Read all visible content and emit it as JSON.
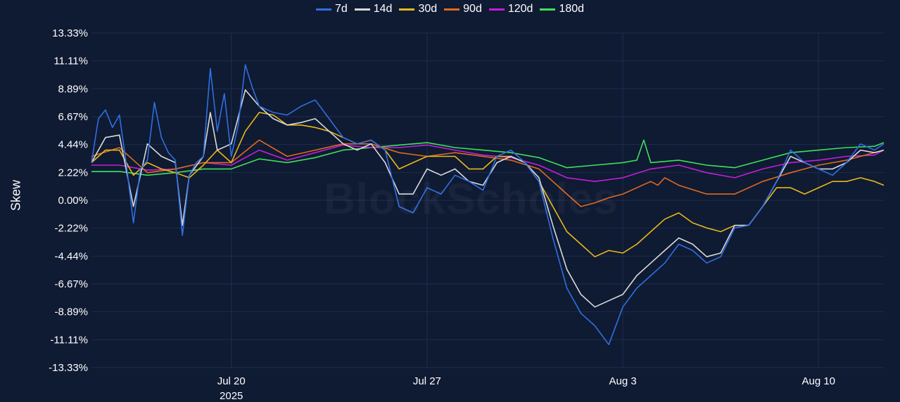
{
  "chart_data": {
    "type": "line",
    "title": "",
    "xlabel": "",
    "ylabel": "Skew",
    "watermark": "BlockScholes",
    "x_range": [
      "2025-07-15T00:00",
      "2025-08-12T08:00"
    ],
    "ylim": [
      -13.33,
      13.33
    ],
    "y_ticks": [
      "13.33%",
      "11.11%",
      "8.89%",
      "6.67%",
      "4.44%",
      "2.22%",
      "0.00%",
      "-2.22%",
      "-4.44%",
      "-6.67%",
      "-8.89%",
      "-11.11%",
      "-13.33%"
    ],
    "x_ticks": [
      {
        "date": "2025-07-20",
        "label": "Jul 20",
        "sublabel": "2025"
      },
      {
        "date": "2025-07-27",
        "label": "Jul 27",
        "sublabel": ""
      },
      {
        "date": "2025-08-03",
        "label": "Aug 3",
        "sublabel": ""
      },
      {
        "date": "2025-08-10",
        "label": "Aug 10",
        "sublabel": ""
      }
    ],
    "grid": true,
    "legend_position": "top-center",
    "series": [
      {
        "name": "7d",
        "color": "#2f6fe0",
        "x": [
          "2025-07-15T00:00",
          "2025-07-15T06:00",
          "2025-07-15T12:00",
          "2025-07-15T18:00",
          "2025-07-16T00:00",
          "2025-07-16T06:00",
          "2025-07-16T12:00",
          "2025-07-16T18:00",
          "2025-07-17T00:00",
          "2025-07-17T06:00",
          "2025-07-17T12:00",
          "2025-07-17T18:00",
          "2025-07-18T00:00",
          "2025-07-18T06:00",
          "2025-07-18T12:00",
          "2025-07-18T18:00",
          "2025-07-19T00:00",
          "2025-07-19T06:00",
          "2025-07-19T12:00",
          "2025-07-19T18:00",
          "2025-07-20T00:00",
          "2025-07-20T06:00",
          "2025-07-20T12:00",
          "2025-07-20T18:00",
          "2025-07-21T00:00",
          "2025-07-21T12:00",
          "2025-07-22T00:00",
          "2025-07-22T12:00",
          "2025-07-23T00:00",
          "2025-07-23T12:00",
          "2025-07-24T00:00",
          "2025-07-24T12:00",
          "2025-07-25T00:00",
          "2025-07-25T12:00",
          "2025-07-26T00:00",
          "2025-07-26T12:00",
          "2025-07-27T00:00",
          "2025-07-27T12:00",
          "2025-07-28T00:00",
          "2025-07-28T12:00",
          "2025-07-29T00:00",
          "2025-07-29T12:00",
          "2025-07-30T00:00",
          "2025-07-30T12:00",
          "2025-07-31T00:00",
          "2025-07-31T12:00",
          "2025-08-01T00:00",
          "2025-08-01T12:00",
          "2025-08-02T00:00",
          "2025-08-02T12:00",
          "2025-08-03T00:00",
          "2025-08-03T12:00",
          "2025-08-04T00:00",
          "2025-08-04T12:00",
          "2025-08-05T00:00",
          "2025-08-05T12:00",
          "2025-08-06T00:00",
          "2025-08-06T12:00",
          "2025-08-07T00:00",
          "2025-08-07T12:00",
          "2025-08-08T00:00",
          "2025-08-08T12:00",
          "2025-08-09T00:00",
          "2025-08-09T12:00",
          "2025-08-10T00:00",
          "2025-08-10T12:00",
          "2025-08-11T00:00",
          "2025-08-11T12:00",
          "2025-08-12T00:00",
          "2025-08-12T08:00"
        ],
        "values": [
          3.0,
          6.5,
          7.2,
          5.8,
          6.8,
          2.8,
          -1.8,
          2.5,
          3.2,
          7.8,
          5.0,
          3.8,
          3.2,
          -2.8,
          2.0,
          3.0,
          3.5,
          10.5,
          5.5,
          8.5,
          3.5,
          6.0,
          10.8,
          9.0,
          7.5,
          7.0,
          6.8,
          7.5,
          8.0,
          6.5,
          5.0,
          4.5,
          4.8,
          4.0,
          -0.5,
          -1.0,
          1.0,
          0.5,
          2.0,
          1.5,
          0.8,
          3.5,
          4.0,
          3.0,
          1.5,
          -3.0,
          -7.0,
          -9.0,
          -10.0,
          -11.5,
          -8.5,
          -7.0,
          -6.0,
          -5.0,
          -3.5,
          -4.0,
          -5.0,
          -4.5,
          -2.2,
          -2.0,
          -0.5,
          1.5,
          4.0,
          3.0,
          2.5,
          2.0,
          3.0,
          4.5,
          4.0,
          4.5
        ]
      },
      {
        "name": "14d",
        "color": "#d9d9d9",
        "x": [
          "2025-07-15T00:00",
          "2025-07-15T12:00",
          "2025-07-16T00:00",
          "2025-07-16T12:00",
          "2025-07-17T00:00",
          "2025-07-17T12:00",
          "2025-07-18T00:00",
          "2025-07-18T06:00",
          "2025-07-18T12:00",
          "2025-07-19T00:00",
          "2025-07-19T06:00",
          "2025-07-19T12:00",
          "2025-07-20T00:00",
          "2025-07-20T12:00",
          "2025-07-21T00:00",
          "2025-07-21T12:00",
          "2025-07-22T00:00",
          "2025-07-22T12:00",
          "2025-07-23T00:00",
          "2025-07-23T12:00",
          "2025-07-24T00:00",
          "2025-07-24T12:00",
          "2025-07-25T00:00",
          "2025-07-25T12:00",
          "2025-07-26T00:00",
          "2025-07-26T12:00",
          "2025-07-27T00:00",
          "2025-07-27T12:00",
          "2025-07-28T00:00",
          "2025-07-28T12:00",
          "2025-07-29T00:00",
          "2025-07-29T12:00",
          "2025-07-30T00:00",
          "2025-07-30T12:00",
          "2025-07-31T00:00",
          "2025-07-31T12:00",
          "2025-08-01T00:00",
          "2025-08-01T12:00",
          "2025-08-02T00:00",
          "2025-08-02T12:00",
          "2025-08-03T00:00",
          "2025-08-03T12:00",
          "2025-08-04T00:00",
          "2025-08-04T12:00",
          "2025-08-05T00:00",
          "2025-08-05T12:00",
          "2025-08-06T00:00",
          "2025-08-06T12:00",
          "2025-08-07T00:00",
          "2025-08-07T12:00",
          "2025-08-08T00:00",
          "2025-08-08T12:00",
          "2025-08-09T00:00",
          "2025-08-09T12:00",
          "2025-08-10T00:00",
          "2025-08-10T12:00",
          "2025-08-11T00:00",
          "2025-08-11T12:00",
          "2025-08-12T00:00",
          "2025-08-12T08:00"
        ],
        "values": [
          3.0,
          5.0,
          5.2,
          -0.5,
          4.5,
          3.5,
          3.0,
          -2.0,
          2.0,
          3.5,
          7.0,
          4.0,
          4.5,
          8.8,
          7.5,
          6.5,
          6.0,
          6.2,
          6.5,
          5.5,
          4.5,
          4.0,
          4.5,
          3.0,
          0.5,
          0.5,
          2.5,
          2.0,
          2.5,
          1.5,
          1.2,
          3.0,
          3.5,
          3.0,
          1.8,
          -2.0,
          -5.5,
          -7.5,
          -8.5,
          -8.0,
          -7.5,
          -6.0,
          -5.0,
          -4.0,
          -3.0,
          -3.5,
          -4.5,
          -4.2,
          -2.0,
          -2.0,
          -0.5,
          1.5,
          3.5,
          3.0,
          2.5,
          2.5,
          3.0,
          4.0,
          3.8,
          4.0
        ]
      },
      {
        "name": "30d",
        "color": "#e8b818",
        "x": [
          "2025-07-15T00:00",
          "2025-07-15T12:00",
          "2025-07-16T00:00",
          "2025-07-16T12:00",
          "2025-07-17T00:00",
          "2025-07-17T12:00",
          "2025-07-18T00:00",
          "2025-07-18T12:00",
          "2025-07-19T00:00",
          "2025-07-19T12:00",
          "2025-07-20T00:00",
          "2025-07-20T12:00",
          "2025-07-21T00:00",
          "2025-07-21T12:00",
          "2025-07-22T00:00",
          "2025-07-22T12:00",
          "2025-07-23T00:00",
          "2025-07-23T12:00",
          "2025-07-24T00:00",
          "2025-07-24T12:00",
          "2025-07-25T00:00",
          "2025-07-25T12:00",
          "2025-07-26T00:00",
          "2025-07-26T12:00",
          "2025-07-27T00:00",
          "2025-07-27T12:00",
          "2025-07-28T00:00",
          "2025-07-28T12:00",
          "2025-07-29T00:00",
          "2025-07-29T12:00",
          "2025-07-30T00:00",
          "2025-07-30T12:00",
          "2025-07-31T00:00",
          "2025-07-31T12:00",
          "2025-08-01T00:00",
          "2025-08-01T12:00",
          "2025-08-02T00:00",
          "2025-08-02T12:00",
          "2025-08-03T00:00",
          "2025-08-03T12:00",
          "2025-08-04T00:00",
          "2025-08-04T12:00",
          "2025-08-05T00:00",
          "2025-08-05T12:00",
          "2025-08-06T00:00",
          "2025-08-06T12:00",
          "2025-08-07T00:00",
          "2025-08-07T12:00",
          "2025-08-08T00:00",
          "2025-08-08T12:00",
          "2025-08-09T00:00",
          "2025-08-09T12:00",
          "2025-08-10T00:00",
          "2025-08-10T12:00",
          "2025-08-11T00:00",
          "2025-08-11T12:00",
          "2025-08-12T00:00",
          "2025-08-12T08:00"
        ],
        "values": [
          3.0,
          4.0,
          4.0,
          2.0,
          3.0,
          2.5,
          2.2,
          1.8,
          2.8,
          4.0,
          3.0,
          5.5,
          7.0,
          6.8,
          6.0,
          6.0,
          5.8,
          5.5,
          5.0,
          4.5,
          4.8,
          4.0,
          2.5,
          3.0,
          3.5,
          3.5,
          3.5,
          2.5,
          2.5,
          3.5,
          3.5,
          3.0,
          1.5,
          -0.5,
          -2.5,
          -3.5,
          -4.5,
          -4.0,
          -4.2,
          -3.5,
          -2.5,
          -1.5,
          -1.0,
          -1.8,
          -2.2,
          -2.5,
          -2.0,
          -2.0,
          -0.5,
          1.0,
          1.0,
          0.5,
          1.0,
          1.5,
          1.5,
          1.8,
          1.5,
          1.2
        ]
      },
      {
        "name": "90d",
        "color": "#e06a1c",
        "x": [
          "2025-07-15T00:00",
          "2025-07-16T00:00",
          "2025-07-17T00:00",
          "2025-07-18T00:00",
          "2025-07-19T00:00",
          "2025-07-20T00:00",
          "2025-07-21T00:00",
          "2025-07-22T00:00",
          "2025-07-23T00:00",
          "2025-07-24T00:00",
          "2025-07-25T00:00",
          "2025-07-26T00:00",
          "2025-07-27T00:00",
          "2025-07-28T00:00",
          "2025-07-29T00:00",
          "2025-07-30T00:00",
          "2025-07-31T00:00",
          "2025-08-01T00:00",
          "2025-08-01T12:00",
          "2025-08-02T00:00",
          "2025-08-02T12:00",
          "2025-08-03T00:00",
          "2025-08-04T00:00",
          "2025-08-04T06:00",
          "2025-08-04T12:00",
          "2025-08-05T00:00",
          "2025-08-06T00:00",
          "2025-08-07T00:00",
          "2025-08-08T00:00",
          "2025-08-09T00:00",
          "2025-08-10T00:00",
          "2025-08-11T00:00",
          "2025-08-12T00:00",
          "2025-08-12T08:00"
        ],
        "values": [
          3.5,
          4.2,
          2.2,
          2.5,
          3.0,
          3.0,
          4.8,
          3.5,
          4.0,
          4.5,
          4.5,
          3.8,
          3.5,
          3.8,
          3.5,
          3.2,
          2.5,
          0.5,
          -0.5,
          -0.2,
          0.2,
          0.5,
          1.5,
          1.2,
          1.8,
          1.2,
          0.5,
          0.5,
          1.5,
          2.2,
          2.8,
          3.2,
          3.8,
          4.0
        ]
      },
      {
        "name": "120d",
        "color": "#c21fd6",
        "x": [
          "2025-07-15T00:00",
          "2025-07-16T00:00",
          "2025-07-17T00:00",
          "2025-07-18T00:00",
          "2025-07-19T00:00",
          "2025-07-20T00:00",
          "2025-07-21T00:00",
          "2025-07-22T00:00",
          "2025-07-23T00:00",
          "2025-07-24T00:00",
          "2025-07-25T00:00",
          "2025-07-26T00:00",
          "2025-07-27T00:00",
          "2025-07-28T00:00",
          "2025-07-29T00:00",
          "2025-07-30T00:00",
          "2025-07-31T00:00",
          "2025-08-01T00:00",
          "2025-08-02T00:00",
          "2025-08-03T00:00",
          "2025-08-04T00:00",
          "2025-08-05T00:00",
          "2025-08-06T00:00",
          "2025-08-07T00:00",
          "2025-08-08T00:00",
          "2025-08-09T00:00",
          "2025-08-10T00:00",
          "2025-08-11T00:00",
          "2025-08-12T00:00",
          "2025-08-12T08:00"
        ],
        "values": [
          2.8,
          2.8,
          2.4,
          2.5,
          3.0,
          2.8,
          4.0,
          3.2,
          3.8,
          4.4,
          4.2,
          4.2,
          4.4,
          4.0,
          3.6,
          3.4,
          2.8,
          1.8,
          1.5,
          1.8,
          2.5,
          2.8,
          2.2,
          1.8,
          2.5,
          3.0,
          3.2,
          3.5,
          3.6,
          4.0
        ]
      },
      {
        "name": "180d",
        "color": "#3ee05a",
        "x": [
          "2025-07-15T00:00",
          "2025-07-16T00:00",
          "2025-07-17T00:00",
          "2025-07-18T00:00",
          "2025-07-19T00:00",
          "2025-07-20T00:00",
          "2025-07-21T00:00",
          "2025-07-22T00:00",
          "2025-07-23T00:00",
          "2025-07-24T00:00",
          "2025-07-25T00:00",
          "2025-07-26T00:00",
          "2025-07-27T00:00",
          "2025-07-28T00:00",
          "2025-07-29T00:00",
          "2025-07-30T00:00",
          "2025-07-31T00:00",
          "2025-08-01T00:00",
          "2025-08-02T00:00",
          "2025-08-03T00:00",
          "2025-08-03T12:00",
          "2025-08-03T18:00",
          "2025-08-04T00:00",
          "2025-08-05T00:00",
          "2025-08-06T00:00",
          "2025-08-07T00:00",
          "2025-08-08T00:00",
          "2025-08-09T00:00",
          "2025-08-10T00:00",
          "2025-08-11T00:00",
          "2025-08-12T00:00",
          "2025-08-12T08:00"
        ],
        "values": [
          2.3,
          2.3,
          2.0,
          2.2,
          2.5,
          2.5,
          3.3,
          3.0,
          3.4,
          4.0,
          4.2,
          4.4,
          4.6,
          4.2,
          4.0,
          3.8,
          3.4,
          2.6,
          2.8,
          3.0,
          3.2,
          4.8,
          3.0,
          3.2,
          2.8,
          2.6,
          3.2,
          3.8,
          4.0,
          4.2,
          4.3,
          4.6
        ]
      }
    ]
  }
}
